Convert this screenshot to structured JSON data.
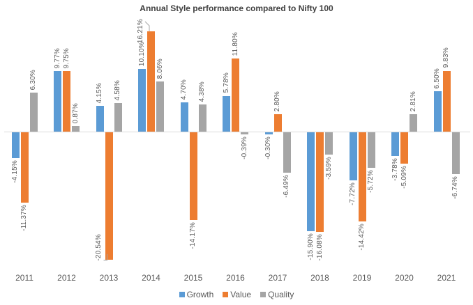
{
  "chart_data": {
    "type": "bar",
    "title": "Annual Style performance compared to Nifty 100",
    "categories": [
      "2011",
      "2012",
      "2013",
      "2014",
      "2015",
      "2016",
      "2017",
      "2018",
      "2019",
      "2020",
      "2021"
    ],
    "series": [
      {
        "name": "Growth",
        "color": "#5B9BD5",
        "values": [
          -4.15,
          9.77,
          4.15,
          10.1,
          4.7,
          5.78,
          -0.3,
          -15.9,
          -7.72,
          -3.78,
          6.5
        ]
      },
      {
        "name": "Value",
        "color": "#ED7D31",
        "values": [
          -11.37,
          9.75,
          -20.54,
          16.21,
          -14.17,
          11.8,
          2.8,
          -16.08,
          -14.42,
          -5.09,
          9.83
        ]
      },
      {
        "name": "Quality",
        "color": "#A5A5A5",
        "values": [
          6.3,
          0.87,
          4.58,
          8.06,
          4.38,
          -0.39,
          -6.49,
          -3.59,
          -5.72,
          2.81,
          -6.74
        ]
      }
    ],
    "data_labels": {
      "format": "percent_two_decimals",
      "suffix": "%",
      "color": "#595959"
    },
    "axis": {
      "x_labels": [
        "2011",
        "2012",
        "2013",
        "2014",
        "2015",
        "2016",
        "2017",
        "2018",
        "2019",
        "2020",
        "2021"
      ],
      "zero_line_color": "#D9D9D9",
      "label_color": "#595959"
    },
    "legend_position": "bottom",
    "grid": false,
    "ylim": [
      -22,
      18
    ]
  }
}
